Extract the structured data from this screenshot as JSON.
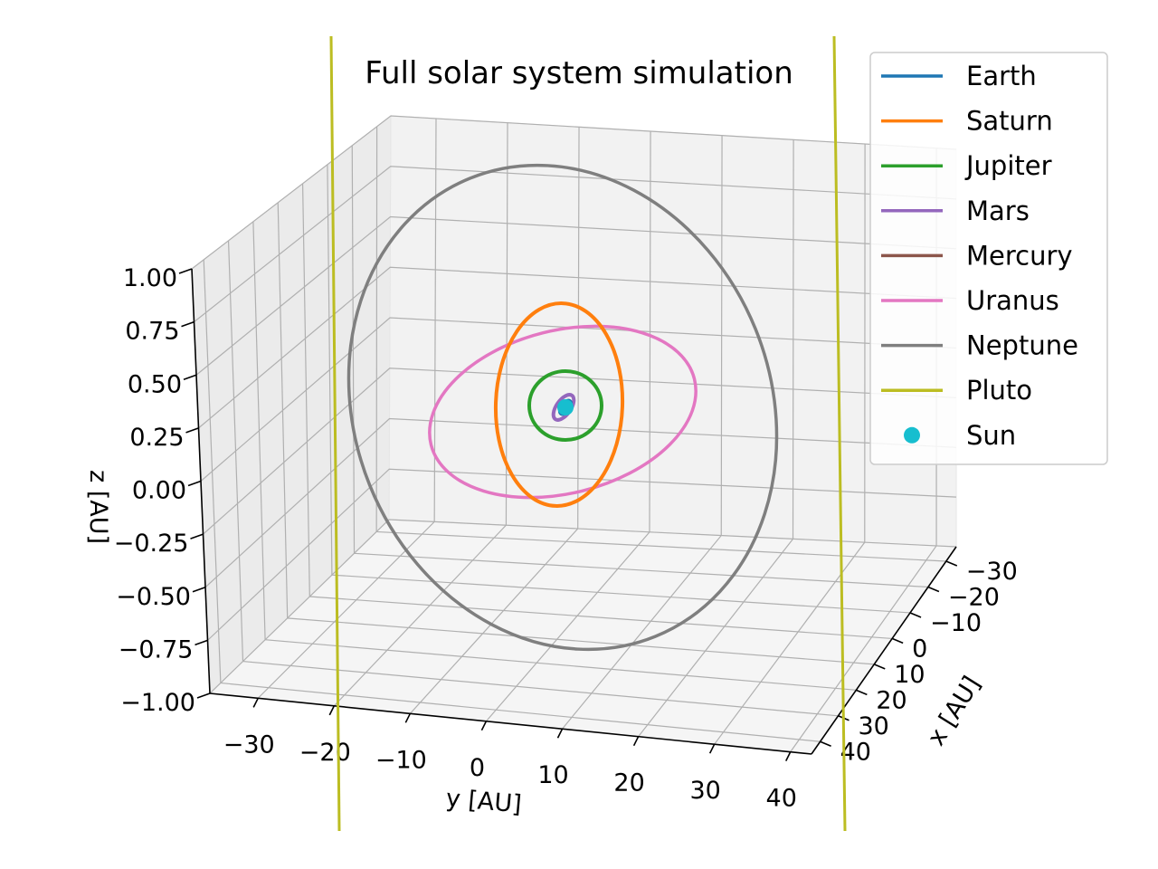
{
  "chart_data": {
    "type": "line",
    "projection": "3d",
    "title": "Full solar system simulation",
    "xlabel": "x [AU]",
    "ylabel": "y [AU]",
    "zlabel": "z [AU]",
    "x_ticks": [
      "−30",
      "−20",
      "−10",
      "0",
      "10",
      "20",
      "30",
      "40"
    ],
    "y_ticks": [
      "−30",
      "−20",
      "−10",
      "0",
      "10",
      "20",
      "30",
      "40"
    ],
    "z_ticks": [
      "−1.00",
      "−0.75",
      "−0.50",
      "−0.25",
      "0.00",
      "0.25",
      "0.50",
      "0.75",
      "1.00"
    ],
    "xlim": [
      -35,
      45
    ],
    "ylim": [
      -35,
      45
    ],
    "zlim": [
      -1,
      1
    ],
    "grid": true,
    "legend_position": "top-right",
    "series": [
      {
        "name": "Earth",
        "color": "#1f77b4",
        "orbit_radius_au": 1.0,
        "marker": "line"
      },
      {
        "name": "Saturn",
        "color": "#ff7f0e",
        "orbit_radius_au": 9.5,
        "marker": "line"
      },
      {
        "name": "Jupiter",
        "color": "#2ca02c",
        "orbit_radius_au": 5.2,
        "marker": "line"
      },
      {
        "name": "Mars",
        "color": "#9467bd",
        "orbit_radius_au": 1.5,
        "marker": "line"
      },
      {
        "name": "Mercury",
        "color": "#8c564b",
        "orbit_radius_au": 0.39,
        "marker": "line"
      },
      {
        "name": "Uranus",
        "color": "#e377c2",
        "orbit_radius_au": 19.2,
        "marker": "line"
      },
      {
        "name": "Neptune",
        "color": "#7f7f7f",
        "orbit_radius_au": 30.1,
        "marker": "line"
      },
      {
        "name": "Pluto",
        "color": "#bcbd22",
        "orbit_radius_au": 39.5,
        "marker": "line"
      },
      {
        "name": "Sun",
        "color": "#17becf",
        "orbit_radius_au": 0,
        "marker": "point"
      }
    ]
  }
}
